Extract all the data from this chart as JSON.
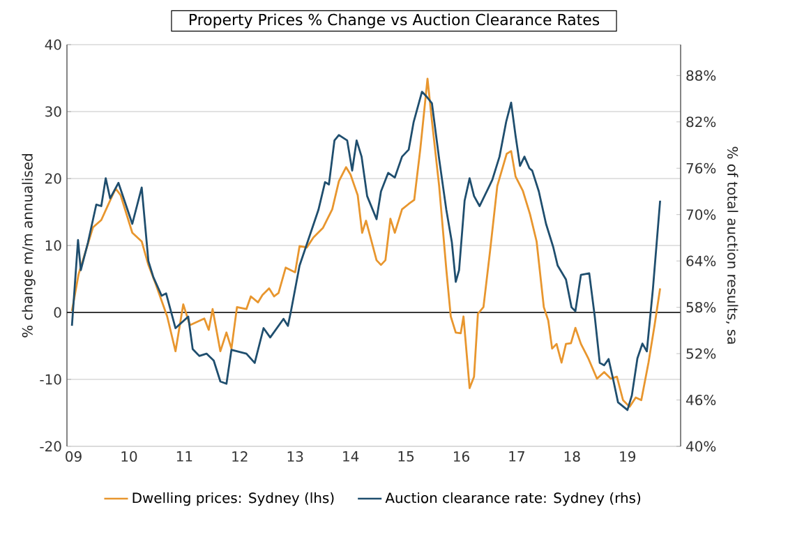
{
  "chart_data": {
    "type": "line",
    "title": "Property Prices % Change vs Auction Clearance Rates",
    "ylabel": "% change m/m annualised",
    "y2label": "% of total auction results, sa",
    "xlim": [
      2008.88,
      2019.96
    ],
    "xticks": [
      {
        "value": 2009,
        "label": "09"
      },
      {
        "value": 2010,
        "label": "10"
      },
      {
        "value": 2011,
        "label": "11"
      },
      {
        "value": 2012,
        "label": "12"
      },
      {
        "value": 2013,
        "label": "13"
      },
      {
        "value": 2014,
        "label": "14"
      },
      {
        "value": 2015,
        "label": "15"
      },
      {
        "value": 2016,
        "label": "16"
      },
      {
        "value": 2017,
        "label": "17"
      },
      {
        "value": 2018,
        "label": "18"
      },
      {
        "value": 2019,
        "label": "19"
      }
    ],
    "ylim": [
      -20,
      40
    ],
    "yticks": [
      -20,
      -10,
      0,
      10,
      20,
      30,
      40
    ],
    "y2lim": [
      40,
      92
    ],
    "y2ticks": [
      {
        "value": 40,
        "label": "40%"
      },
      {
        "value": 46,
        "label": "46%"
      },
      {
        "value": 52,
        "label": "52%"
      },
      {
        "value": 58,
        "label": "58%"
      },
      {
        "value": 64,
        "label": "64%"
      },
      {
        "value": 70,
        "label": "70%"
      },
      {
        "value": 76,
        "label": "76%"
      },
      {
        "value": 82,
        "label": "82%"
      },
      {
        "value": 88,
        "label": "88%"
      }
    ],
    "grid": "y",
    "legend": "bottom",
    "series": [
      {
        "name": "Dwelling prices: Sydney (lhs)",
        "color": "#e8962e",
        "x": [
          2008.97,
          2009.09,
          2009.35,
          2009.5,
          2009.68,
          2009.76,
          2009.85,
          2010.06,
          2010.23,
          2010.35,
          2010.48,
          2010.69,
          2010.84,
          2010.98,
          2011.1,
          2011.36,
          2011.44,
          2011.51,
          2011.65,
          2011.76,
          2011.85,
          2011.95,
          2012.12,
          2012.2,
          2012.33,
          2012.41,
          2012.53,
          2012.62,
          2012.7,
          2012.83,
          2013.0,
          2013.08,
          2013.21,
          2013.33,
          2013.5,
          2013.67,
          2013.79,
          2013.92,
          2014.0,
          2014.13,
          2014.21,
          2014.28,
          2014.47,
          2014.55,
          2014.63,
          2014.72,
          2014.8,
          2014.93,
          2015.05,
          2015.15,
          2015.26,
          2015.39,
          2015.47,
          2015.6,
          2015.73,
          2015.81,
          2015.9,
          2015.99,
          2016.04,
          2016.15,
          2016.23,
          2016.3,
          2016.4,
          2016.52,
          2016.65,
          2016.82,
          2016.9,
          2016.98,
          2017.11,
          2017.24,
          2017.36,
          2017.49,
          2017.57,
          2017.64,
          2017.72,
          2017.81,
          2017.89,
          2017.98,
          2018.06,
          2018.16,
          2018.29,
          2018.45,
          2018.58,
          2018.7,
          2018.81,
          2018.92,
          2019.04,
          2019.15,
          2019.25,
          2019.38,
          2019.49,
          2019.59
        ],
        "values": [
          0.2,
          5.7,
          12.7,
          13.8,
          17.1,
          18.5,
          17.5,
          11.9,
          10.6,
          7.1,
          4.3,
          -0.6,
          -5.8,
          1.2,
          -1.9,
          -0.9,
          -2.6,
          0.5,
          -5.8,
          -3,
          -5.4,
          0.8,
          0.5,
          2.4,
          1.5,
          2.6,
          3.6,
          2.4,
          2.9,
          6.7,
          6.0,
          9.9,
          9.7,
          11.2,
          12.6,
          15.4,
          19.6,
          21.7,
          20.6,
          17.5,
          11.9,
          13.7,
          7.8,
          7.1,
          7.8,
          14,
          11.9,
          15.4,
          16.2,
          16.8,
          24.4,
          34.9,
          28.6,
          18.9,
          6.4,
          -0.6,
          -3,
          -3.1,
          -0.6,
          -11.3,
          -9.6,
          -0.2,
          0.8,
          9.2,
          18.9,
          23.7,
          24.1,
          20.3,
          18.2,
          14.7,
          10.6,
          0.8,
          -1.2,
          -5.4,
          -4.7,
          -7.5,
          -4.7,
          -4.6,
          -2.3,
          -4.7,
          -6.8,
          -9.9,
          -8.9,
          -9.9,
          -9.6,
          -13.1,
          -14.1,
          -12.7,
          -13.1,
          -7.5,
          -1.9,
          3.6
        ]
      },
      {
        "name": "Auction clearance rate: Sydney (rhs)",
        "color": "#1f4e6e",
        "axis": "y2",
        "x": [
          2008.97,
          2009.08,
          2009.13,
          2009.26,
          2009.41,
          2009.5,
          2009.58,
          2009.66,
          2009.81,
          2010.06,
          2010.23,
          2010.35,
          2010.44,
          2010.59,
          2010.67,
          2010.84,
          2011.07,
          2011.15,
          2011.27,
          2011.4,
          2011.53,
          2011.65,
          2011.76,
          2011.85,
          2012.12,
          2012.27,
          2012.43,
          2012.55,
          2012.79,
          2012.87,
          2012.93,
          2013.08,
          2013.25,
          2013.42,
          2013.54,
          2013.61,
          2013.71,
          2013.79,
          2013.94,
          2014.03,
          2014.11,
          2014.2,
          2014.3,
          2014.47,
          2014.55,
          2014.68,
          2014.8,
          2014.93,
          2015.05,
          2015.14,
          2015.29,
          2015.37,
          2015.47,
          2015.6,
          2015.73,
          2015.83,
          2015.9,
          2015.96,
          2016.06,
          2016.15,
          2016.23,
          2016.33,
          2016.48,
          2016.56,
          2016.69,
          2016.81,
          2016.9,
          2016.98,
          2017.06,
          2017.14,
          2017.23,
          2017.28,
          2017.4,
          2017.53,
          2017.66,
          2017.74,
          2017.89,
          2017.99,
          2018.06,
          2018.16,
          2018.31,
          2018.41,
          2018.5,
          2018.58,
          2018.66,
          2018.75,
          2018.83,
          2019.0,
          2019.08,
          2019.18,
          2019.27,
          2019.35,
          2019.46,
          2019.59
        ],
        "values": [
          55.6,
          66.7,
          62.8,
          66.4,
          71.3,
          71.1,
          74.7,
          72.1,
          74.1,
          68.8,
          73.5,
          64.0,
          61.9,
          59.5,
          59.8,
          55.3,
          56.8,
          52.6,
          51.7,
          52.0,
          51.1,
          48.4,
          48.1,
          52.5,
          52.0,
          50.8,
          55.3,
          54.1,
          56.5,
          55.6,
          57.7,
          63.4,
          67.0,
          70.6,
          74.2,
          73.9,
          79.6,
          80.3,
          79.6,
          75.7,
          79.6,
          77.5,
          72.4,
          69.4,
          73.0,
          75.4,
          74.8,
          77.5,
          78.4,
          82.0,
          85.9,
          85.3,
          84.4,
          77.2,
          70.6,
          66.4,
          61.3,
          62.8,
          71.8,
          74.7,
          72.4,
          71.1,
          73.3,
          74.5,
          77.5,
          82.0,
          84.5,
          80.2,
          76.3,
          77.5,
          76.0,
          75.7,
          73.0,
          68.8,
          65.8,
          63.4,
          61.6,
          58.0,
          57.5,
          62.2,
          62.4,
          56.8,
          50.8,
          50.5,
          51.3,
          48.4,
          45.7,
          44.7,
          46.6,
          51.4,
          53.3,
          52.3,
          60.4,
          71.8
        ]
      }
    ]
  }
}
